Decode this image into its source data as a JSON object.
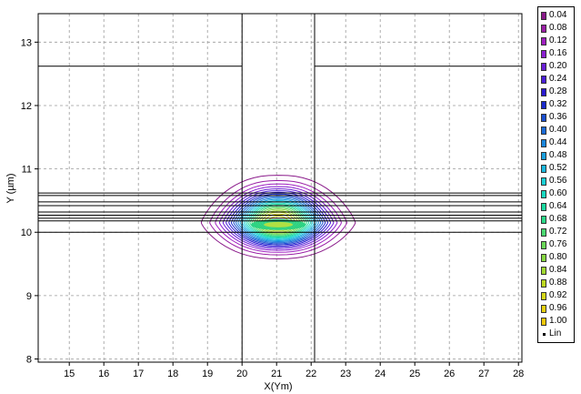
{
  "chart_data": {
    "type": "contour",
    "xlabel": "X(Ym)",
    "ylabel": "Y (µm)",
    "xlim": [
      14.1,
      28.1
    ],
    "ylim": [
      7.95,
      13.45
    ],
    "x_ticks": [
      "15",
      "16",
      "17",
      "18",
      "19",
      "20",
      "21",
      "22",
      "23",
      "24",
      "25",
      "26",
      "27",
      "28"
    ],
    "y_ticks": [
      "8",
      "9",
      "10",
      "11",
      "12",
      "13"
    ],
    "x_tick_values": [
      15,
      16,
      17,
      18,
      19,
      20,
      21,
      22,
      23,
      24,
      25,
      26,
      27,
      28
    ],
    "y_tick_values": [
      8,
      9,
      10,
      11,
      12,
      13
    ],
    "grid": true,
    "legend_position": "right",
    "scale_label": "Lin",
    "levels": [
      "0.04",
      "0.08",
      "0.12",
      "0.16",
      "0.20",
      "0.24",
      "0.28",
      "0.32",
      "0.36",
      "0.40",
      "0.44",
      "0.48",
      "0.52",
      "0.56",
      "0.60",
      "0.64",
      "0.68",
      "0.72",
      "0.76",
      "0.80",
      "0.84",
      "0.88",
      "0.92",
      "0.96",
      "1.00"
    ],
    "level_colors": [
      "#8a1a8a",
      "#9a1fa6",
      "#9f1fc0",
      "#8a1fd0",
      "#6a1fd6",
      "#4a1fd8",
      "#2a1ad0",
      "#1a2acc",
      "#1a4fd0",
      "#1a6ad6",
      "#1a86dc",
      "#1aa0de",
      "#1ab8de",
      "#1ad0d6",
      "#1ad8c0",
      "#1ad8a0",
      "#2ad888",
      "#4ad870",
      "#6ad858",
      "#86d840",
      "#a0d830",
      "#bcd820",
      "#d6d818",
      "#e6d010",
      "#f0c80a"
    ],
    "field": {
      "center_x": 21.05,
      "center_y": 10.15,
      "sigma_x": 0.55,
      "sigma_y": 0.09,
      "edge": 0.38,
      "peak_y": 10.0,
      "top_y": 10.88,
      "bottom_y": 9.6
    },
    "structure": {
      "vertical_lines_x": [
        20.0,
        22.1
      ],
      "top_horizontal_y": 12.62,
      "layer_lines_y": [
        10.0,
        10.18,
        10.22,
        10.27,
        10.32,
        10.42,
        10.48,
        10.58,
        10.62
      ]
    }
  }
}
